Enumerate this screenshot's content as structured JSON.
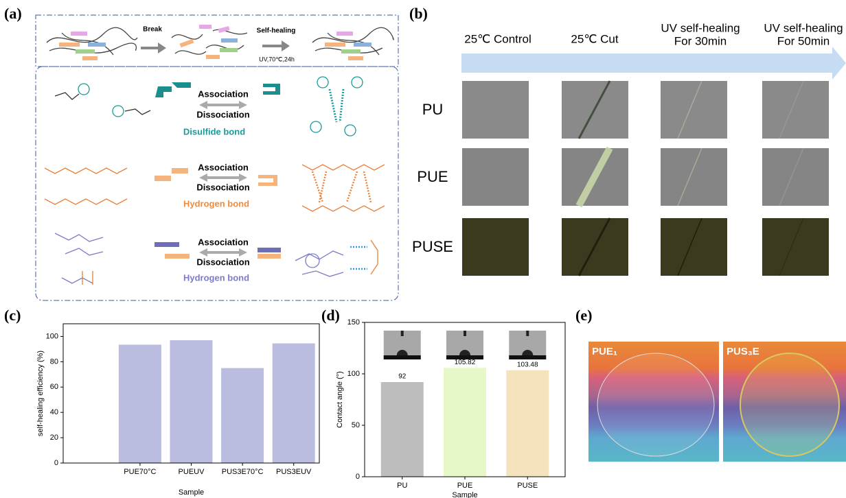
{
  "panel_labels": [
    "(a)",
    "(b)",
    "(c)",
    "(d)",
    "(e)"
  ],
  "schematic": {
    "break": "Break",
    "self_healing": "Self-healing",
    "conditions": "UV,70℃,24h",
    "bonds": [
      {
        "association": "Association",
        "dissociation": "Dissociation",
        "name": "Disulfide bond"
      },
      {
        "association": "Association",
        "dissociation": "Dissociation",
        "name": "Hydrogen bond"
      },
      {
        "association": "Association",
        "dissociation": "Dissociation",
        "name": "Hydrogen bond"
      }
    ]
  },
  "micrographs": {
    "columns": [
      [
        "25℃ Control"
      ],
      [
        "25℃ Cut"
      ],
      [
        "UV self-healing",
        "For 30min"
      ],
      [
        "UV self-healing",
        "For 50min"
      ]
    ],
    "rows": [
      "PU",
      "PUE",
      "PUSE"
    ]
  },
  "chart_data": [
    {
      "type": "bar",
      "ylabel": "self-healing efficiency (%)",
      "xlabel": "Sample",
      "categories": [
        "PUE70°C",
        "PUEUV",
        "PUS3E70°C",
        "PUS3EUV"
      ],
      "values": [
        93.5,
        97,
        75,
        94.5
      ],
      "color": "#babde0",
      "ylim": [
        0,
        110
      ],
      "yticks": [
        0,
        20,
        40,
        60,
        80,
        100
      ]
    },
    {
      "type": "bar",
      "ylabel": "Contact angle (°)",
      "xlabel": "Sample",
      "categories": [
        "PU",
        "PUE",
        "PUSE"
      ],
      "values": [
        92,
        105.82,
        103.48
      ],
      "colors": [
        "#bdbdbd",
        "#e6f8c8",
        "#f5e3bd"
      ],
      "ylim": [
        0,
        150
      ],
      "yticks": [
        0,
        50,
        100,
        150
      ],
      "data_labels": true
    }
  ],
  "photos": {
    "labels": [
      "PUE₁",
      "PUS₃E"
    ]
  }
}
